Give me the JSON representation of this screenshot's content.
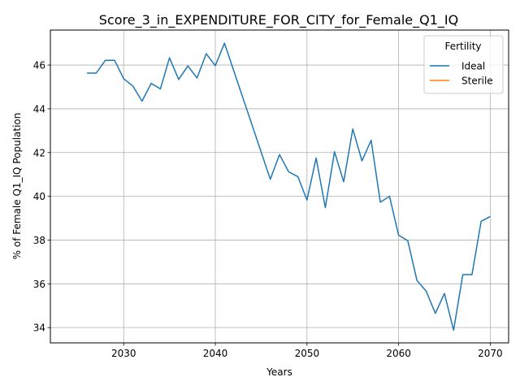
{
  "chart_data": {
    "type": "line",
    "title": "Score_3_in_EXPENDITURE_FOR_CITY_for_Female_Q1_IQ",
    "xlabel": "Years",
    "ylabel": "% of Female Q1_IQ Population",
    "xlim": [
      2022,
      2072
    ],
    "ylim": [
      33.3,
      47.6
    ],
    "xticks": [
      2030,
      2040,
      2050,
      2060,
      2070
    ],
    "yticks": [
      34,
      36,
      38,
      40,
      42,
      44,
      46
    ],
    "grid": true,
    "legend": {
      "title": "Fertility",
      "placement": "top-right"
    },
    "series": [
      {
        "name": "Ideal",
        "color": "#1f77b4",
        "points": [
          [
            2026,
            45.63
          ],
          [
            2027,
            45.63
          ],
          [
            2028,
            46.22
          ],
          [
            2029,
            46.22
          ],
          [
            2030,
            45.38
          ],
          [
            2031,
            45.04
          ],
          [
            2032,
            44.35
          ],
          [
            2033,
            45.16
          ],
          [
            2034,
            44.91
          ],
          [
            2035,
            46.33
          ],
          [
            2036,
            45.34
          ],
          [
            2037,
            45.96
          ],
          [
            2038,
            45.41
          ],
          [
            2039,
            46.52
          ],
          [
            2040,
            45.97
          ],
          [
            2041,
            47.0
          ],
          [
            2046,
            40.78
          ],
          [
            2047,
            41.91
          ],
          [
            2048,
            41.12
          ],
          [
            2049,
            40.9
          ],
          [
            2050,
            39.83
          ],
          [
            2051,
            41.75
          ],
          [
            2052,
            39.48
          ],
          [
            2053,
            42.04
          ],
          [
            2054,
            40.66
          ],
          [
            2055,
            43.08
          ],
          [
            2056,
            41.62
          ],
          [
            2057,
            42.56
          ],
          [
            2058,
            39.73
          ],
          [
            2059,
            40.0
          ],
          [
            2060,
            38.22
          ],
          [
            2061,
            37.97
          ],
          [
            2062,
            36.15
          ],
          [
            2063,
            35.67
          ],
          [
            2064,
            34.65
          ],
          [
            2065,
            35.56
          ],
          [
            2066,
            33.88
          ],
          [
            2067,
            36.42
          ],
          [
            2068,
            36.42
          ],
          [
            2069,
            38.86
          ],
          [
            2070,
            39.08
          ]
        ]
      },
      {
        "name": "Sterile",
        "color": "#ff7f0e",
        "points": []
      }
    ]
  }
}
